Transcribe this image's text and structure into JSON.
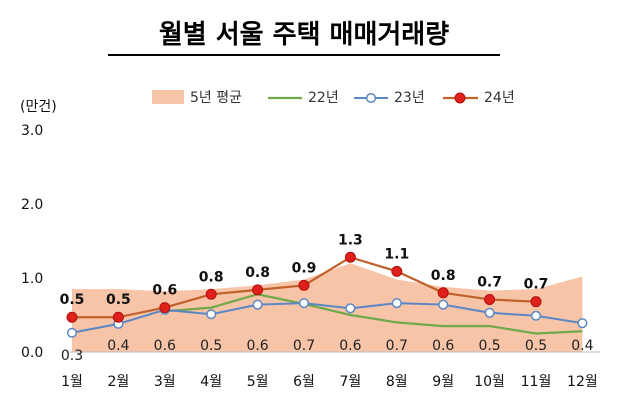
{
  "chart_data": {
    "type": "line",
    "title": "월별 서울 주택 매매거래량",
    "unit_label": "(만건)",
    "categories": [
      "1월",
      "2월",
      "3월",
      "4월",
      "5월",
      "6월",
      "7월",
      "8월",
      "9월",
      "10월",
      "11월",
      "12월"
    ],
    "ylim": [
      0,
      3.0
    ],
    "y_ticks": [
      "0.0",
      "1.0",
      "2.0",
      "3.0"
    ],
    "grid": false,
    "legend_position": "top",
    "series": [
      {
        "name": "5년 평균",
        "kind": "area",
        "color": "#f8c4a8",
        "values": [
          0.85,
          0.85,
          0.82,
          0.85,
          0.9,
          0.98,
          1.2,
          0.98,
          0.88,
          0.83,
          0.85,
          1.02
        ]
      },
      {
        "name": "22년",
        "kind": "line",
        "color": "#70a84a",
        "values": [
          null,
          null,
          0.55,
          0.6,
          0.78,
          0.65,
          0.5,
          0.4,
          0.35,
          0.35,
          0.25,
          0.28
        ]
      },
      {
        "name": "23년",
        "kind": "line",
        "color": "#5b87c5",
        "values": [
          0.26,
          0.38,
          0.57,
          0.51,
          0.64,
          0.66,
          0.59,
          0.66,
          0.64,
          0.53,
          0.49,
          0.39
        ],
        "labels": [
          "0.3",
          "0.4",
          "0.6",
          "0.5",
          "0.6",
          "0.7",
          "0.6",
          "0.7",
          "0.6",
          "0.5",
          "0.5",
          "0.4"
        ]
      },
      {
        "name": "24년",
        "kind": "line",
        "color": "#c0602a",
        "marker_color": "#e0201a",
        "values": [
          0.47,
          0.47,
          0.6,
          0.78,
          0.84,
          0.9,
          1.28,
          1.09,
          0.8,
          0.71,
          0.68,
          null
        ],
        "labels": [
          "0.5",
          "0.5",
          "0.6",
          "0.8",
          "0.8",
          "0.9",
          "1.3",
          "1.1",
          "0.8",
          "0.7",
          "0.7",
          null
        ]
      }
    ]
  }
}
